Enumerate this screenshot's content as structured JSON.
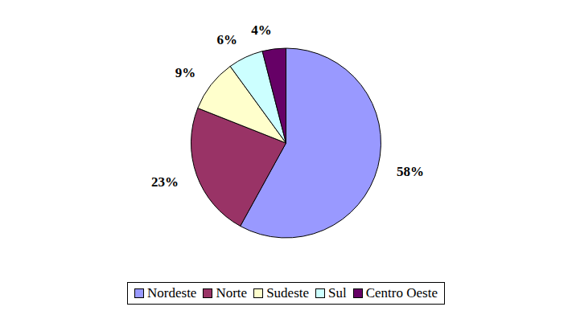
{
  "chart_data": {
    "type": "pie",
    "categories": [
      "Nordeste",
      "Norte",
      "Sudeste",
      "Sul",
      "Centro Oeste"
    ],
    "values": [
      58,
      23,
      9,
      6,
      4
    ],
    "value_labels": [
      "58%",
      "23%",
      "9%",
      "6%",
      "4%"
    ],
    "colors": [
      "#9999ff",
      "#993366",
      "#ffffcc",
      "#ccffff",
      "#660066"
    ],
    "data_labels": true,
    "legend": "bottom"
  }
}
